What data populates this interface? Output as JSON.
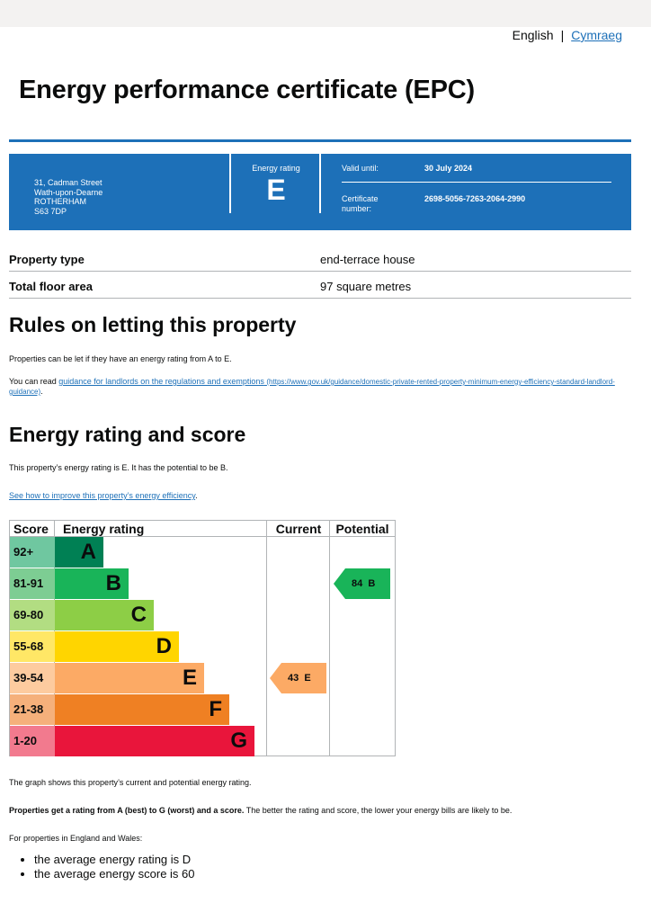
{
  "header": {
    "lang_current": "English",
    "lang_sep": "|",
    "lang_alt": "Cymraeg"
  },
  "title": "Energy performance certificate (EPC)",
  "summary": {
    "address": [
      "31, Cadman Street",
      "Wath-upon-Dearne",
      "ROTHERHAM",
      "S63 7DP"
    ],
    "rating_label": "Energy rating",
    "rating": "E",
    "valid_label": "Valid until:",
    "valid_value": "30 July 2024",
    "cert_label_1": "Certificate",
    "cert_label_2": "number:",
    "cert_value": "2698-5056-7263-2064-2990"
  },
  "property": [
    {
      "key": "Property type",
      "value": "end-terrace house"
    },
    {
      "key": "Total floor area",
      "value": "97 square metres"
    }
  ],
  "letting": {
    "heading": "Rules on letting this property",
    "p1": "Properties can be let if they have an energy rating from A to E.",
    "p2_prefix": "You can read ",
    "p2_link": "guidance for landlords on the regulations and exemptions",
    "p2_url": "(https://www.gov.uk/guidance/domestic-private-rented-property-minimum-energy-efficiency-standard-landlord-guidance)",
    "p2_suffix": "."
  },
  "rating_section": {
    "heading": "Energy rating and score",
    "p1": "This property’s energy rating is E. It has the potential to be B.",
    "improve_link": "See how to improve this property’s energy efficiency",
    "improve_suffix": "."
  },
  "chart_data": {
    "type": "table",
    "headers": {
      "score": "Score",
      "rating": "Energy rating",
      "current": "Current",
      "potential": "Potential"
    },
    "bands": [
      {
        "score": "92+",
        "letter": "A",
        "color": "#008054",
        "score_bg": "#6fc7a0"
      },
      {
        "score": "81-91",
        "letter": "B",
        "color": "#19b459",
        "score_bg": "#7dcd93"
      },
      {
        "score": "69-80",
        "letter": "C",
        "color": "#8dce46",
        "score_bg": "#b2dd82"
      },
      {
        "score": "55-68",
        "letter": "D",
        "color": "#ffd500",
        "score_bg": "#ffe766"
      },
      {
        "score": "39-54",
        "letter": "E",
        "color": "#fcaa65",
        "score_bg": "#fdcb9f"
      },
      {
        "score": "21-38",
        "letter": "F",
        "color": "#ef8023",
        "score_bg": "#f5b07b"
      },
      {
        "score": "1-20",
        "letter": "G",
        "color": "#e9153b",
        "score_bg": "#f27a8e"
      }
    ],
    "current": {
      "score": 43,
      "letter": "E",
      "color": "#fcaa65"
    },
    "potential": {
      "score": 84,
      "letter": "B",
      "color": "#19b459"
    }
  },
  "after_chart": {
    "p1": "The graph shows this property’s current and potential energy rating.",
    "p2_bold": "Properties get a rating from A (best) to G (worst) and a score.",
    "p2_rest": " The better the rating and score, the lower your energy bills are likely to be.",
    "p3": "For properties in England and Wales:",
    "averages": [
      "the average energy rating is D",
      "the average energy score is 60"
    ]
  }
}
